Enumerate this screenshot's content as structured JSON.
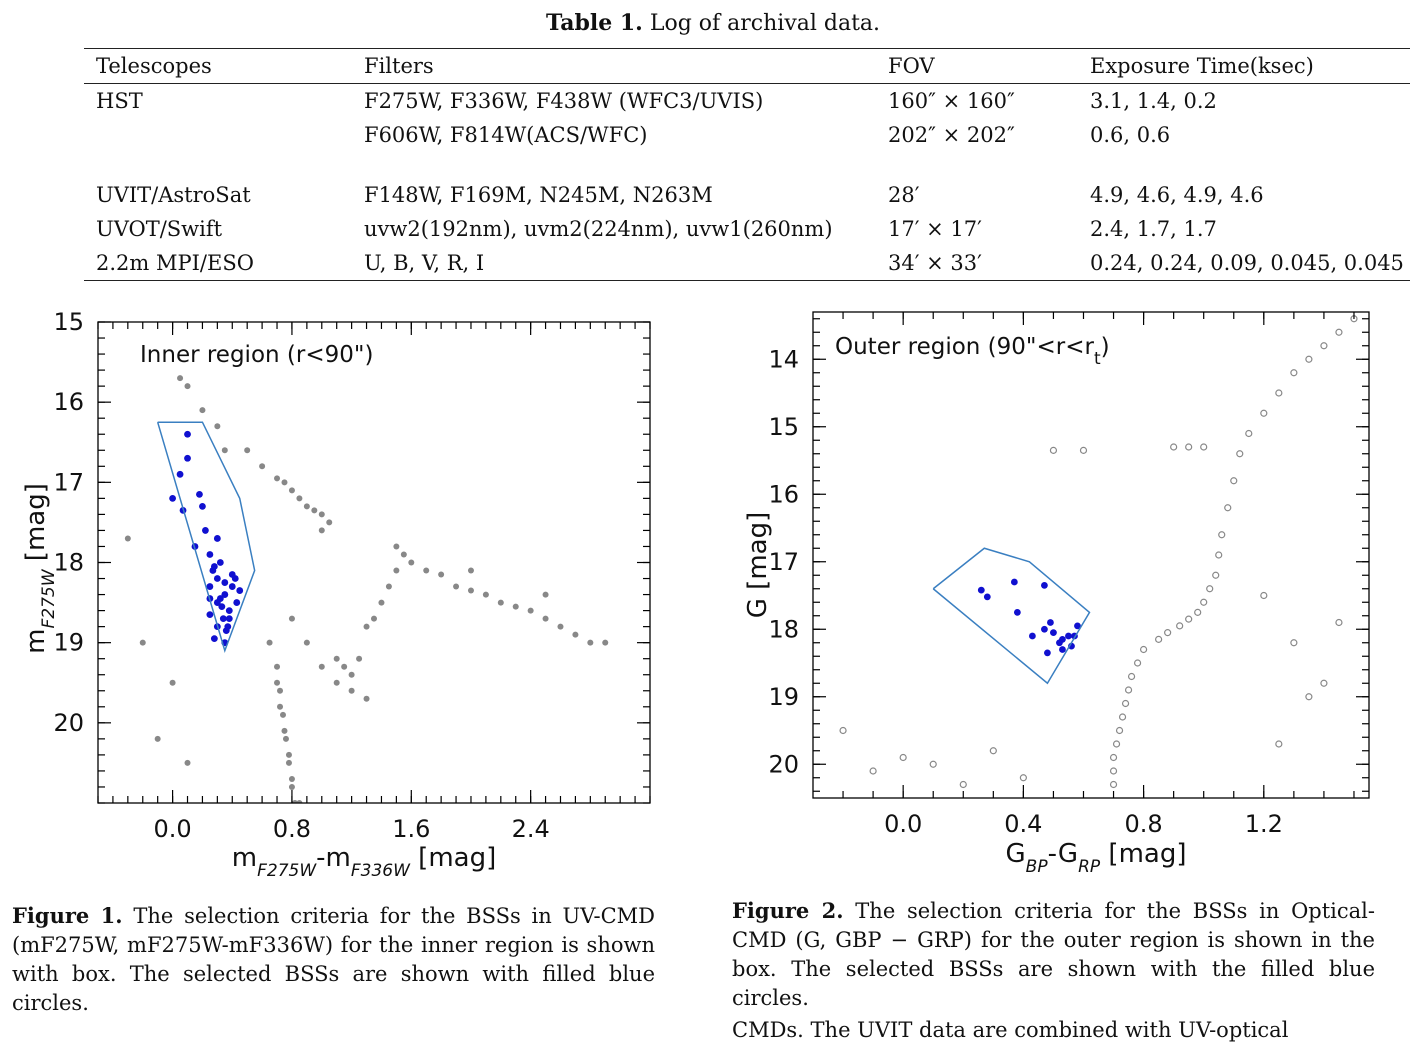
{
  "table": {
    "caption_label": "Table 1.",
    "caption_text": "Log of archival data.",
    "headers": [
      "Telescopes",
      "Filters",
      "FOV",
      "Exposure Time(ksec)"
    ],
    "rows": [
      [
        "HST",
        "F275W, F336W, F438W (WFC3/UVIS)",
        "160″ × 160″",
        "3.1, 1.4, 0.2"
      ],
      [
        "",
        "F606W, F814W(ACS/WFC)",
        "202″ × 202″",
        "0.6, 0.6"
      ],
      [
        "",
        "",
        "",
        ""
      ],
      [
        "UVIT/AstroSat",
        "F148W, F169M, N245M, N263M",
        "28′",
        "4.9, 4.6, 4.9, 4.6"
      ],
      [
        "UVOT/Swift",
        "uvw2(192nm), uvm2(224nm), uvw1(260nm)",
        "17′ × 17′",
        "2.4, 1.7, 1.7"
      ],
      [
        "2.2m MPI/ESO",
        "U, B, V, R, I",
        "34′ × 33′",
        "0.24, 0.24, 0.09, 0.045, 0.045"
      ]
    ]
  },
  "chart_data": [
    {
      "type": "scatter",
      "annotation": "Inner region (r<90\")",
      "xlabel": "mF275W-mF336W [mag]",
      "ylabel": "mF275W [mag]",
      "xlim": [
        -0.5,
        3.2
      ],
      "ylim": [
        21.0,
        15.0
      ],
      "y_inverted": true,
      "xticks": [
        0.0,
        0.8,
        1.6,
        2.4
      ],
      "xtick_labels": [
        "0.0",
        "0.8",
        "1.6",
        "2.4"
      ],
      "yticks": [
        15,
        16,
        17,
        18,
        19,
        20
      ],
      "ytick_labels": [
        "15",
        "16",
        "17",
        "18",
        "19",
        "20"
      ],
      "series": [
        {
          "role": "all stars",
          "color": "#888888",
          "marker": "filled",
          "x": [
            0.05,
            0.1,
            0.2,
            0.3,
            0.35,
            0.5,
            0.6,
            0.7,
            0.75,
            0.8,
            0.85,
            0.9,
            0.95,
            1.0,
            1.05,
            1.1,
            1.15,
            1.2,
            1.25,
            1.3,
            1.35,
            1.4,
            1.45,
            1.5,
            1.55,
            1.6,
            1.7,
            1.8,
            1.9,
            2.0,
            2.1,
            2.2,
            2.3,
            2.4,
            2.5,
            2.6,
            2.7,
            2.8,
            2.9,
            0.8,
            0.9,
            1.0,
            1.1,
            1.2,
            1.3,
            0.65,
            0.7,
            0.72,
            0.74,
            0.76,
            0.78,
            0.8,
            0.82,
            0.7,
            0.72,
            0.75,
            0.78,
            0.8,
            0.85,
            -0.3,
            -0.2,
            0.0,
            -0.1,
            0.1,
            1.0,
            1.5,
            2.0,
            2.5
          ],
          "y": [
            15.7,
            15.8,
            16.1,
            16.3,
            16.6,
            16.6,
            16.8,
            16.95,
            17.0,
            17.1,
            17.2,
            17.3,
            17.35,
            17.4,
            17.5,
            19.2,
            19.3,
            19.4,
            19.2,
            18.8,
            18.7,
            18.5,
            18.3,
            18.1,
            17.9,
            18.0,
            18.1,
            18.15,
            18.3,
            18.35,
            18.4,
            18.5,
            18.55,
            18.6,
            18.7,
            18.8,
            18.9,
            19.0,
            19.0,
            18.7,
            19.0,
            19.3,
            19.5,
            19.6,
            19.7,
            19.0,
            19.3,
            19.6,
            19.9,
            20.2,
            20.5,
            20.8,
            21.0,
            19.5,
            19.8,
            20.1,
            20.4,
            20.7,
            21.0,
            17.7,
            19.0,
            19.5,
            20.2,
            20.5,
            17.6,
            17.8,
            18.1,
            18.4
          ]
        },
        {
          "role": "selected BSSs",
          "color": "#1010d0",
          "marker": "filled",
          "x": [
            0.1,
            0.1,
            0.05,
            0.0,
            0.07,
            0.18,
            0.2,
            0.22,
            0.15,
            0.3,
            0.25,
            0.27,
            0.25,
            0.28,
            0.3,
            0.32,
            0.35,
            0.25,
            0.3,
            0.35,
            0.38,
            0.4,
            0.42,
            0.43,
            0.45,
            0.38,
            0.36,
            0.34,
            0.3,
            0.33,
            0.25,
            0.28,
            0.35,
            0.37,
            0.4,
            0.32
          ],
          "y": [
            16.4,
            16.7,
            16.9,
            17.2,
            17.35,
            17.15,
            17.3,
            17.6,
            17.8,
            17.7,
            17.9,
            18.1,
            18.3,
            18.05,
            18.2,
            18.0,
            18.25,
            18.45,
            18.5,
            18.4,
            18.6,
            18.3,
            18.2,
            18.5,
            18.35,
            18.7,
            18.85,
            18.7,
            18.8,
            18.55,
            18.65,
            18.95,
            19.0,
            18.8,
            18.15,
            18.45
          ]
        }
      ],
      "selection_box": {
        "x": [
          -0.1,
          0.2,
          0.45,
          0.55,
          0.35,
          -0.1
        ],
        "y": [
          16.25,
          16.25,
          17.2,
          18.1,
          19.1,
          16.25
        ]
      }
    },
    {
      "type": "scatter",
      "annotation": "Outer region (90\"<r<rt)",
      "xlabel": "GBP-GRP [mag]",
      "ylabel": "G [mag]",
      "xlim": [
        -0.3,
        1.55
      ],
      "ylim": [
        20.5,
        13.3
      ],
      "y_inverted": true,
      "xticks": [
        0.0,
        0.4,
        0.8,
        1.2
      ],
      "xtick_labels": [
        "0.0",
        "0.4",
        "0.8",
        "1.2"
      ],
      "yticks": [
        14,
        15,
        16,
        17,
        18,
        19,
        20
      ],
      "ytick_labels": [
        "14",
        "15",
        "16",
        "17",
        "18",
        "19",
        "20"
      ],
      "series": [
        {
          "role": "all stars",
          "color": "#888888",
          "marker": "open",
          "x": [
            1.5,
            1.45,
            1.4,
            1.35,
            1.3,
            1.25,
            1.2,
            1.15,
            1.12,
            1.1,
            1.08,
            1.06,
            1.05,
            1.04,
            1.02,
            1.0,
            0.98,
            0.95,
            0.92,
            0.88,
            0.85,
            0.8,
            0.78,
            0.76,
            0.75,
            0.74,
            0.73,
            0.72,
            0.71,
            0.7,
            0.7,
            0.7,
            0.9,
            0.95,
            1.0,
            0.6,
            0.5,
            1.2,
            1.3,
            1.4,
            -0.2,
            0.3,
            0.1,
            0.2,
            -0.1,
            0.0,
            0.4,
            1.45,
            1.35,
            1.25
          ],
          "y": [
            13.4,
            13.6,
            13.8,
            14.0,
            14.2,
            14.5,
            14.8,
            15.1,
            15.4,
            15.8,
            16.2,
            16.6,
            16.9,
            17.2,
            17.4,
            17.6,
            17.75,
            17.85,
            17.95,
            18.05,
            18.15,
            18.3,
            18.5,
            18.7,
            18.9,
            19.1,
            19.3,
            19.5,
            19.7,
            19.9,
            20.1,
            20.3,
            15.3,
            15.3,
            15.3,
            15.35,
            15.35,
            17.5,
            18.2,
            18.8,
            19.5,
            19.8,
            20.0,
            20.3,
            20.1,
            19.9,
            20.2,
            17.9,
            19.0,
            19.7
          ]
        },
        {
          "role": "selected BSSs",
          "color": "#1010d0",
          "marker": "filled",
          "x": [
            0.26,
            0.28,
            0.37,
            0.38,
            0.47,
            0.49,
            0.47,
            0.5,
            0.53,
            0.52,
            0.55,
            0.53,
            0.56,
            0.58,
            0.57,
            0.48,
            0.43
          ],
          "y": [
            17.42,
            17.52,
            17.3,
            17.75,
            17.35,
            17.9,
            18.0,
            18.05,
            18.15,
            18.2,
            18.1,
            18.3,
            18.25,
            17.95,
            18.1,
            18.35,
            18.1
          ]
        }
      ],
      "selection_box": {
        "x": [
          0.1,
          0.27,
          0.42,
          0.62,
          0.48,
          0.1
        ],
        "y": [
          17.4,
          16.8,
          17.0,
          17.75,
          18.8,
          17.4
        ]
      }
    }
  ],
  "figure1": {
    "label": "Figure 1.",
    "text": "The selection criteria for the BSSs in UV-CMD (mF275W, mF275W-mF336W) for the inner region is shown with box. The selected BSSs are shown with filled blue circles."
  },
  "figure2": {
    "label": "Figure 2.",
    "text": "The selection criteria for the BSSs in Optical-CMD (G, GBP − GRP) for the outer region is shown in the box. The selected BSSs are shown with the filled blue circles."
  },
  "next_text": "CMDs. The UVIT data are combined with UV-optical"
}
